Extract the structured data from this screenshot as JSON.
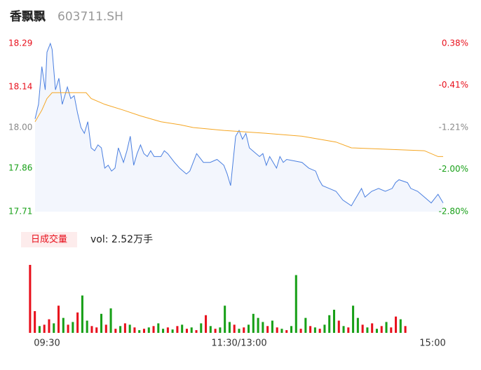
{
  "header": {
    "name": "香飘飘",
    "code": "603711.SH"
  },
  "chart_data": [
    {
      "type": "line",
      "xlim": [
        0,
        240
      ],
      "xticks": [
        {
          "value": 0,
          "label": "09:30"
        },
        {
          "value": 120,
          "label": "11:30/13:00"
        },
        {
          "value": 240,
          "label": "15:00"
        }
      ],
      "ylim": [
        17.71,
        18.29
      ],
      "yticks": [
        17.71,
        17.86,
        {
          "value": 18,
          "label": "18.00"
        },
        18.14,
        18.29
      ],
      "ytick_colors": [
        "#18a018",
        "#18a018",
        "#888888",
        "#e8101c",
        "#e8101c"
      ],
      "y2lim": [
        -2.8,
        0.38
      ],
      "y2ticks": [
        {
          "value": -2.8,
          "label": "-2.80%"
        },
        {
          "value": -2,
          "label": "-2.00%"
        },
        {
          "value": -1.21,
          "label": "-1.21%"
        },
        {
          "value": -0.41,
          "label": "-0.41%"
        },
        {
          "value": 0.38,
          "label": "0.38%"
        }
      ],
      "y2tick_colors": [
        "#18a018",
        "#18a018",
        "#888888",
        "#e8101c",
        "#e8101c"
      ],
      "series": [
        {
          "color": "#4a7fe0",
          "fill_color": "#f3f6fd",
          "x": [
            0,
            2,
            4,
            6,
            7,
            9,
            10,
            12,
            14,
            16,
            19,
            21,
            23,
            25,
            27,
            29,
            31,
            33,
            35,
            37,
            39,
            41,
            43,
            45,
            47,
            49,
            52,
            54,
            56,
            58,
            60,
            62,
            64,
            66,
            68,
            70,
            74,
            76,
            78,
            82,
            85,
            89,
            91,
            95,
            99,
            103,
            107,
            111,
            113,
            115,
            118,
            120,
            122,
            124,
            126,
            128,
            132,
            134,
            136,
            138,
            142,
            144,
            146,
            148,
            157,
            161,
            165,
            167,
            169,
            173,
            177,
            181,
            186,
            188,
            192,
            194,
            198,
            202,
            206,
            210,
            212,
            214,
            219,
            221,
            225,
            229,
            233,
            237,
            240
          ],
          "values": [
            18.03,
            18.08,
            18.21,
            18.13,
            18.26,
            18.29,
            18.27,
            18.13,
            18.17,
            18.08,
            18.14,
            18.1,
            18.11,
            18.05,
            18.0,
            17.98,
            18.02,
            17.93,
            17.92,
            17.94,
            17.93,
            17.86,
            17.87,
            17.85,
            17.86,
            17.93,
            17.88,
            17.92,
            17.97,
            17.87,
            17.91,
            17.94,
            17.91,
            17.9,
            17.92,
            17.9,
            17.9,
            17.92,
            17.91,
            17.88,
            17.86,
            17.84,
            17.85,
            17.91,
            17.88,
            17.88,
            17.89,
            17.87,
            17.84,
            17.8,
            17.97,
            17.99,
            17.96,
            17.98,
            17.93,
            17.92,
            17.9,
            17.91,
            17.87,
            17.9,
            17.86,
            17.9,
            17.88,
            17.89,
            17.88,
            17.86,
            17.85,
            17.82,
            17.8,
            17.79,
            17.78,
            17.75,
            17.73,
            17.75,
            17.79,
            17.76,
            17.78,
            17.79,
            17.78,
            17.79,
            17.81,
            17.82,
            17.81,
            17.79,
            17.78,
            17.76,
            17.74,
            17.77,
            17.74
          ]
        },
        {
          "color": "#f5a623",
          "x": [
            0,
            4,
            7,
            10,
            30,
            33,
            41,
            52,
            62,
            74,
            85,
            93,
            111,
            136,
            157,
            177,
            186,
            229,
            237,
            240
          ],
          "values": [
            18.02,
            18.06,
            18.1,
            18.12,
            18.12,
            18.1,
            18.08,
            18.06,
            18.04,
            18.02,
            18.01,
            18.0,
            17.99,
            17.98,
            17.97,
            17.95,
            17.93,
            17.92,
            17.9,
            17.9
          ]
        }
      ]
    },
    {
      "type": "volume",
      "badge": "日成交量",
      "label": "vol: 2.52万手",
      "values": [
        100,
        32,
        10,
        12,
        20,
        14,
        40,
        22,
        12,
        16,
        30,
        55,
        18,
        10,
        8,
        28,
        12,
        36,
        6,
        10,
        14,
        12,
        8,
        4,
        6,
        8,
        10,
        14,
        6,
        8,
        5,
        10,
        12,
        6,
        8,
        4,
        14,
        26,
        10,
        6,
        8,
        40,
        16,
        12,
        6,
        8,
        12,
        28,
        22,
        16,
        10,
        18,
        8,
        6,
        4,
        10,
        85,
        6,
        22,
        10,
        8,
        6,
        12,
        26,
        34,
        18,
        10,
        8,
        40,
        22,
        12,
        8,
        14,
        6,
        10,
        16,
        8,
        24,
        20,
        10
      ],
      "colors": [
        "#e8101c",
        "#e8101c",
        "#18a018",
        "#e8101c",
        "#e8101c",
        "#18a018",
        "#e8101c",
        "#18a018",
        "#e8101c",
        "#18a018",
        "#e8101c",
        "#18a018",
        "#18a018",
        "#e8101c",
        "#e8101c",
        "#18a018",
        "#e8101c",
        "#18a018",
        "#e8101c",
        "#18a018",
        "#e8101c",
        "#18a018",
        "#e8101c",
        "#18a018",
        "#e8101c",
        "#18a018",
        "#e8101c",
        "#18a018",
        "#18a018",
        "#e8101c",
        "#18a018",
        "#e8101c",
        "#18a018",
        "#e8101c",
        "#18a018",
        "#e8101c",
        "#18a018",
        "#e8101c",
        "#18a018",
        "#e8101c",
        "#18a018",
        "#18a018",
        "#18a018",
        "#e8101c",
        "#18a018",
        "#e8101c",
        "#18a018",
        "#18a018",
        "#18a018",
        "#18a018",
        "#e8101c",
        "#18a018",
        "#e8101c",
        "#18a018",
        "#e8101c",
        "#18a018",
        "#18a018",
        "#e8101c",
        "#18a018",
        "#e8101c",
        "#18a018",
        "#e8101c",
        "#18a018",
        "#18a018",
        "#18a018",
        "#e8101c",
        "#18a018",
        "#e8101c",
        "#18a018",
        "#18a018",
        "#e8101c",
        "#18a018",
        "#e8101c",
        "#18a018",
        "#e8101c",
        "#18a018",
        "#e8101c",
        "#e8101c",
        "#18a018",
        "#e8101c"
      ]
    }
  ]
}
